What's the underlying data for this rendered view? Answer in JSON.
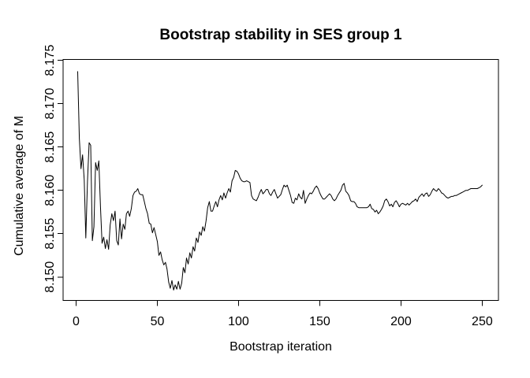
{
  "page": {
    "background": "#ffffff",
    "foreground": "#000000"
  },
  "chart_data": {
    "type": "line",
    "title": "Bootstrap stability in SES group 1",
    "xlabel": "Bootstrap iteration",
    "ylabel": "Cumulative average of M",
    "x_tick_values": [
      0,
      50,
      100,
      150,
      200,
      250
    ],
    "x_tick_labels": [
      "0",
      "50",
      "100",
      "150",
      "200",
      "250"
    ],
    "y_tick_values": [
      8.15,
      8.155,
      8.16,
      8.165,
      8.17,
      8.175
    ],
    "y_tick_labels": [
      "8.150",
      "8.155",
      "8.160",
      "8.165",
      "8.170",
      "8.175"
    ],
    "xlim": [
      -8,
      260
    ],
    "ylim": [
      8.1473,
      8.1751
    ],
    "grid": false,
    "legend": "none",
    "line_color": "#000000",
    "series": [
      {
        "name": "Cumulative average of M",
        "x_start": 1,
        "x_step": 1,
        "values": [
          8.1737,
          8.166,
          8.1625,
          8.1641,
          8.1612,
          8.1545,
          8.161,
          8.1655,
          8.1652,
          8.1542,
          8.1558,
          8.1632,
          8.1623,
          8.1634,
          8.1581,
          8.1539,
          8.1546,
          8.1533,
          8.1543,
          8.1532,
          8.156,
          8.1573,
          8.1565,
          8.1576,
          8.1542,
          8.1537,
          8.1567,
          8.1544,
          8.1561,
          8.1555,
          8.1573,
          8.1576,
          8.157,
          8.1579,
          8.1594,
          8.1598,
          8.1599,
          8.1602,
          8.1596,
          8.1595,
          8.1595,
          8.1587,
          8.1579,
          8.1573,
          8.1562,
          8.1561,
          8.1551,
          8.1557,
          8.1549,
          8.1541,
          8.1525,
          8.1529,
          8.152,
          8.1514,
          8.1517,
          8.1509,
          8.1494,
          8.1487,
          8.1496,
          8.1485,
          8.1491,
          8.1486,
          8.1495,
          8.1486,
          8.1493,
          8.1511,
          8.1505,
          8.1522,
          8.1515,
          8.1528,
          8.1522,
          8.1535,
          8.153,
          8.1545,
          8.154,
          8.1552,
          8.1548,
          8.1558,
          8.1553,
          8.1565,
          8.158,
          8.1587,
          8.1576,
          8.1576,
          8.1582,
          8.1587,
          8.1581,
          8.1589,
          8.1594,
          8.1589,
          8.1597,
          8.1591,
          8.1597,
          8.1602,
          8.1598,
          8.1611,
          8.1615,
          8.1623,
          8.1622,
          8.1619,
          8.1614,
          8.1611,
          8.161,
          8.161,
          8.1611,
          8.161,
          8.1609,
          8.1594,
          8.159,
          8.1589,
          8.1588,
          8.1592,
          8.1597,
          8.1601,
          8.1596,
          8.1598,
          8.1601,
          8.1601,
          8.1596,
          8.1594,
          8.1598,
          8.1601,
          8.1596,
          8.1591,
          8.1593,
          8.1595,
          8.1601,
          8.1606,
          8.1604,
          8.1606,
          8.16,
          8.1594,
          8.1586,
          8.1585,
          8.1591,
          8.1589,
          8.1596,
          8.1592,
          8.159,
          8.16,
          8.1585,
          8.159,
          8.1594,
          8.1597,
          8.1596,
          8.1599,
          8.1603,
          8.1605,
          8.1602,
          8.1597,
          8.1593,
          8.159,
          8.159,
          8.1592,
          8.1594,
          8.1596,
          8.1594,
          8.159,
          8.1588,
          8.159,
          8.1594,
          8.1597,
          8.16,
          8.1606,
          8.1608,
          8.1599,
          8.1597,
          8.1594,
          8.1588,
          8.1587,
          8.1587,
          8.1585,
          8.1581,
          8.158,
          8.158,
          8.158,
          8.158,
          8.158,
          8.158,
          8.1581,
          8.1584,
          8.1579,
          8.1578,
          8.1575,
          8.1577,
          8.1573,
          8.1575,
          8.1578,
          8.1582,
          8.1588,
          8.159,
          8.1587,
          8.1582,
          8.1584,
          8.1581,
          8.1586,
          8.1588,
          8.1585,
          8.1581,
          8.1584,
          8.1585,
          8.1584,
          8.1583,
          8.1585,
          8.1583,
          8.1585,
          8.1587,
          8.1588,
          8.159,
          8.1587,
          8.1592,
          8.1594,
          8.1596,
          8.1593,
          8.1596,
          8.1597,
          8.1593,
          8.1595,
          8.1599,
          8.1602,
          8.16,
          8.1599,
          8.1602,
          8.16,
          8.1597,
          8.1596,
          8.1594,
          8.1592,
          8.1591,
          8.1592,
          8.1593,
          8.1593,
          8.1594,
          8.1594,
          8.1595,
          8.1596,
          8.1597,
          8.1598,
          8.1599,
          8.16,
          8.16,
          8.1601,
          8.1602,
          8.1602,
          8.1602,
          8.1602,
          8.1602,
          8.1603,
          8.1604,
          8.1606
        ]
      }
    ]
  }
}
